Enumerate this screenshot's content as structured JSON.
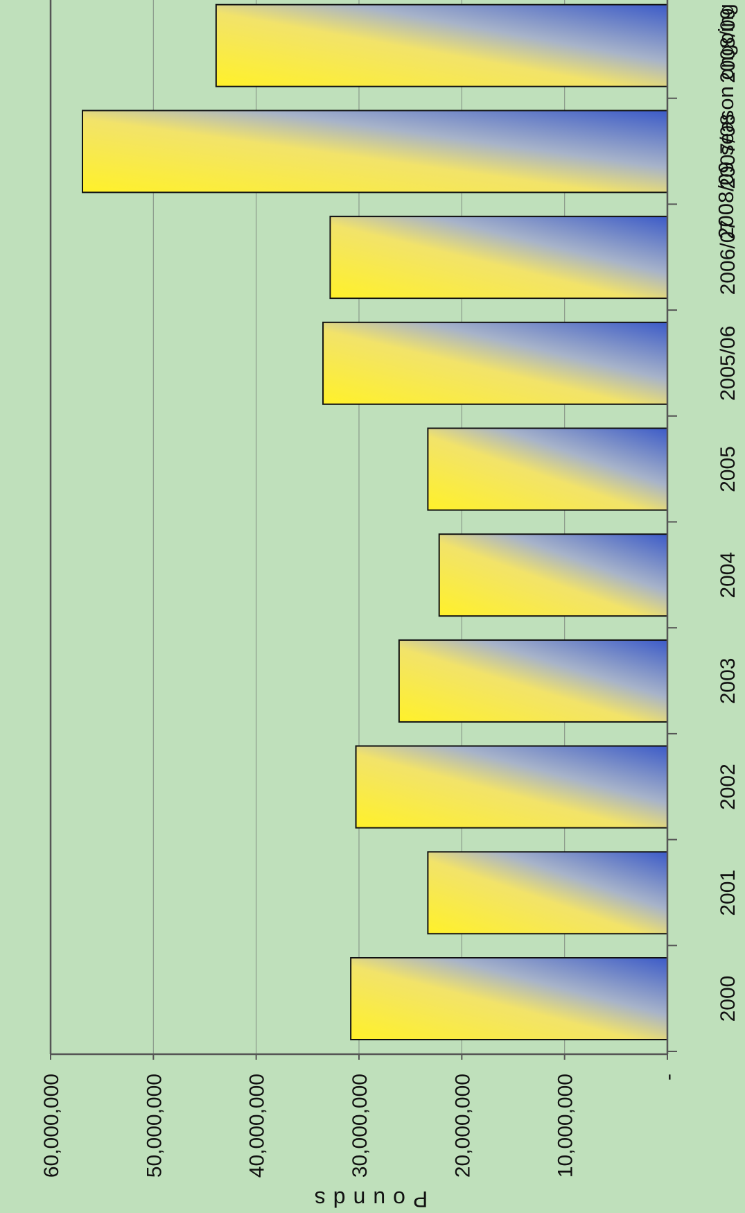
{
  "chart_data": {
    "type": "bar",
    "categories": [
      "2000",
      "2001",
      "2002",
      "2003",
      "2004",
      "2005",
      "2005/06",
      "2006/07",
      "2007/08",
      "2008/09"
    ],
    "values": [
      30800000,
      23300000,
      30300000,
      26100000,
      22200000,
      23300000,
      33500000,
      32800000,
      56900000,
      43900000
    ],
    "ylim": [
      0,
      60000000
    ],
    "yticks": [
      0,
      10000000,
      20000000,
      30000000,
      40000000,
      50000000,
      60000000
    ],
    "ytick_labels": [
      "-",
      "10,000,000",
      "20,000,000",
      "30,000,000",
      "40,000,000",
      "50,000,000",
      "60,000,000"
    ],
    "ylabel": "Pounds",
    "annotation": "2008/09 season ongoing",
    "grid": true,
    "orientation": "rotated-90-counterclockwise"
  },
  "colors": {
    "background": "#bfe0bb",
    "bar_light": "#fff12a",
    "bar_dark": "#3c5bc8",
    "gridline": "#8a9a8a",
    "axis": "#555555"
  }
}
